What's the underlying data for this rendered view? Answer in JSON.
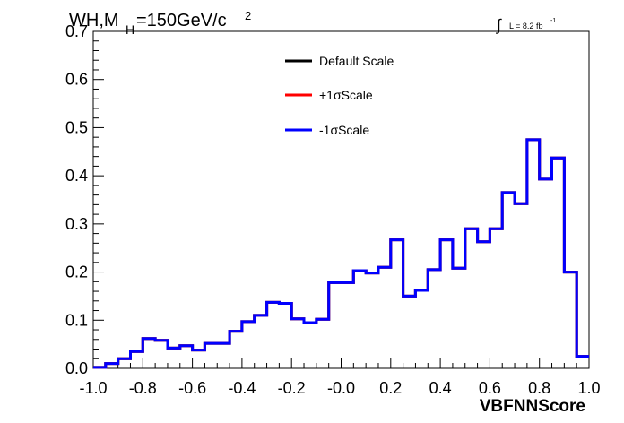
{
  "chart_data": {
    "type": "histogram",
    "title": {
      "main": "WH,M",
      "sub": "H",
      "rest": "=150GeV/c",
      "sup": "2"
    },
    "lumi": {
      "integral": "∫",
      "text": "L = 8.2 fb",
      "sup": "-1"
    },
    "xlabel": "VBFNNScore",
    "ylabel": "",
    "xlim": [
      -1.0,
      1.0
    ],
    "ylim": [
      0,
      0.7
    ],
    "x_ticks": [
      -1.0,
      -0.8,
      -0.6,
      -0.4,
      -0.2,
      0.0,
      0.2,
      0.4,
      0.6,
      0.8,
      1.0
    ],
    "x_tick_labels": [
      "-1.0",
      "-0.8",
      "-0.6",
      "-0.4",
      "-0.2",
      "-0.0",
      "0.2",
      "0.4",
      "0.6",
      "0.8",
      "1.0"
    ],
    "y_ticks": [
      0,
      0.1,
      0.2,
      0.3,
      0.4,
      0.5,
      0.6,
      0.7
    ],
    "y_tick_labels": [
      "0.0",
      "0.1",
      "0.2",
      "0.3",
      "0.4",
      "0.5",
      "0.6",
      "0.7"
    ],
    "bin_edges_start": -1.0,
    "bin_width": 0.05,
    "legend": {
      "position": "top-center",
      "entries": [
        {
          "label": "Default Scale",
          "color": "#000000"
        },
        {
          "label": "+1σScale",
          "color": "#ff0000"
        },
        {
          "label": "-1σScale",
          "color": "#0000ff"
        }
      ]
    },
    "series": [
      {
        "name": "Default Scale",
        "color": "#000000",
        "values": [
          0.002,
          0.01,
          0.02,
          0.035,
          0.062,
          0.058,
          0.042,
          0.047,
          0.038,
          0.052,
          0.052,
          0.077,
          0.097,
          0.11,
          0.137,
          0.135,
          0.103,
          0.095,
          0.102,
          0.178,
          0.178,
          0.203,
          0.198,
          0.21,
          0.267,
          0.15,
          0.162,
          0.205,
          0.267,
          0.208,
          0.29,
          0.263,
          0.29,
          0.365,
          0.342,
          0.475,
          0.393,
          0.437,
          0.2,
          0.025
        ]
      },
      {
        "name": "+1σScale",
        "color": "#ff0000",
        "values": [
          0.002,
          0.01,
          0.02,
          0.035,
          0.062,
          0.058,
          0.042,
          0.047,
          0.038,
          0.052,
          0.052,
          0.077,
          0.097,
          0.11,
          0.137,
          0.135,
          0.103,
          0.095,
          0.102,
          0.178,
          0.178,
          0.203,
          0.198,
          0.21,
          0.267,
          0.15,
          0.162,
          0.205,
          0.267,
          0.208,
          0.29,
          0.263,
          0.29,
          0.365,
          0.342,
          0.475,
          0.393,
          0.437,
          0.2,
          0.025
        ]
      },
      {
        "name": "-1σScale",
        "color": "#0000ff",
        "values": [
          0.002,
          0.01,
          0.02,
          0.035,
          0.062,
          0.058,
          0.042,
          0.047,
          0.038,
          0.052,
          0.052,
          0.077,
          0.097,
          0.11,
          0.137,
          0.135,
          0.103,
          0.095,
          0.102,
          0.178,
          0.178,
          0.203,
          0.198,
          0.21,
          0.267,
          0.15,
          0.162,
          0.205,
          0.267,
          0.208,
          0.29,
          0.263,
          0.29,
          0.365,
          0.342,
          0.475,
          0.393,
          0.437,
          0.2,
          0.025
        ]
      }
    ]
  }
}
